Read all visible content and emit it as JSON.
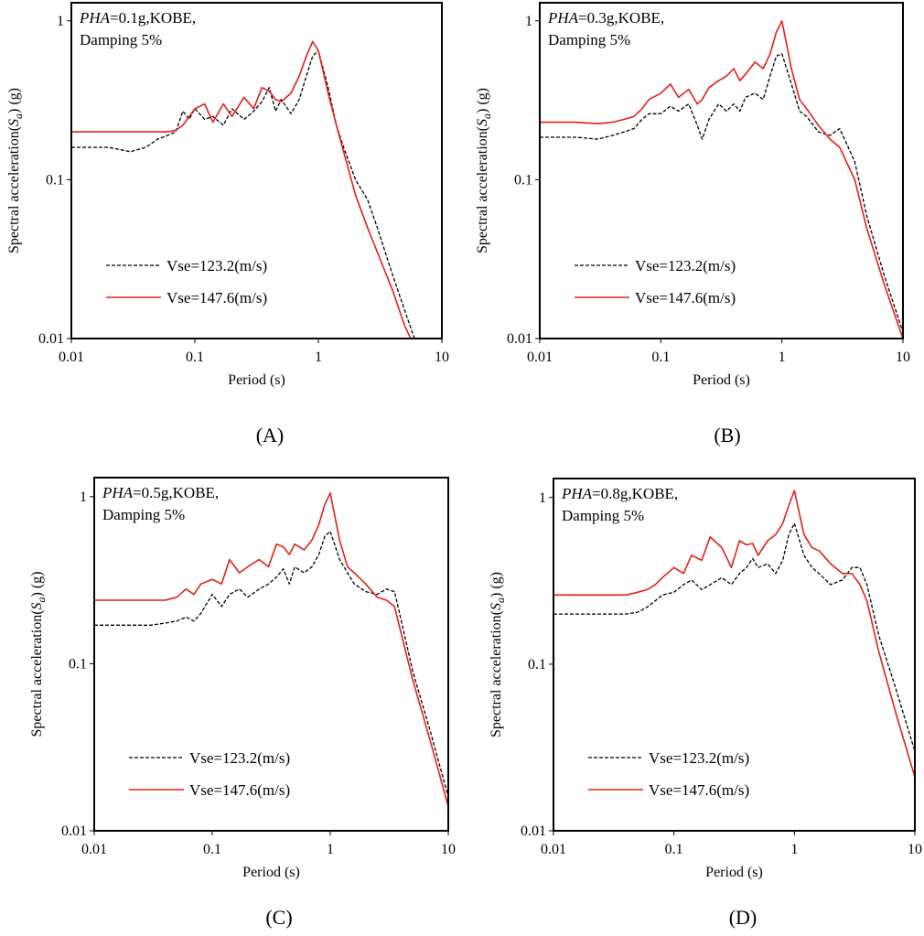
{
  "figure": {
    "panels": [
      {
        "caption": "(A)",
        "pha_label": "PHA",
        "annotation_rest": "=0.1g,KOBE,",
        "damping": "Damping 5%"
      },
      {
        "caption": "(B)",
        "pha_label": "PHA",
        "annotation_rest": "=0.3g,KOBE,",
        "damping": "Damping 5%"
      },
      {
        "caption": "(C)",
        "pha_label": "PHA",
        "annotation_rest": "=0.5g,KOBE,",
        "damping": "Damping 5%"
      },
      {
        "caption": "(D)",
        "pha_label": "PHA",
        "annotation_rest": "=0.8g,KOBE,",
        "damping": "Damping 5%"
      }
    ]
  },
  "chart_data": [
    {
      "type": "line",
      "title": "PHA=0.1g,KOBE, Damping 5%",
      "xlabel": "Period (s)",
      "ylabel_main": "Spectral  acceleration(",
      "ylabel_symbol": "S",
      "ylabel_sub": "a",
      "ylabel_end": ") (g)",
      "xscale": "log",
      "yscale": "log",
      "xlim": [
        0.01,
        10
      ],
      "ylim": [
        0.01,
        1.3
      ],
      "xticks": [
        "0.01",
        "0.1",
        "1",
        "10"
      ],
      "yticks": [
        "0.01",
        "0.1",
        "1"
      ],
      "legend_position": "lower-left",
      "series": [
        {
          "name": "Vse=123.2(m/s)",
          "color": "#000000",
          "dash": "dashed",
          "x": [
            0.01,
            0.02,
            0.03,
            0.04,
            0.05,
            0.06,
            0.07,
            0.08,
            0.09,
            0.1,
            0.12,
            0.14,
            0.17,
            0.2,
            0.25,
            0.3,
            0.35,
            0.4,
            0.45,
            0.5,
            0.6,
            0.7,
            0.8,
            0.9,
            1.0,
            1.2,
            1.4,
            1.6,
            2.0,
            2.5,
            3.0,
            4.0,
            5.0,
            6.0
          ],
          "y": [
            0.16,
            0.16,
            0.15,
            0.16,
            0.18,
            0.19,
            0.2,
            0.27,
            0.24,
            0.28,
            0.24,
            0.25,
            0.22,
            0.28,
            0.24,
            0.27,
            0.31,
            0.38,
            0.27,
            0.32,
            0.26,
            0.32,
            0.45,
            0.6,
            0.65,
            0.38,
            0.22,
            0.16,
            0.1,
            0.075,
            0.05,
            0.025,
            0.015,
            0.01
          ]
        },
        {
          "name": "Vse=147.6(m/s)",
          "color": "#e3201b",
          "dash": "solid",
          "x": [
            0.01,
            0.02,
            0.03,
            0.04,
            0.05,
            0.06,
            0.07,
            0.08,
            0.1,
            0.12,
            0.14,
            0.17,
            0.2,
            0.25,
            0.3,
            0.35,
            0.4,
            0.45,
            0.5,
            0.6,
            0.7,
            0.8,
            0.9,
            1.0,
            1.2,
            1.4,
            1.6,
            2.0,
            2.5,
            3.0,
            4.0,
            5.0,
            5.6
          ],
          "y": [
            0.2,
            0.2,
            0.2,
            0.2,
            0.2,
            0.2,
            0.205,
            0.22,
            0.28,
            0.3,
            0.23,
            0.3,
            0.25,
            0.33,
            0.28,
            0.38,
            0.36,
            0.32,
            0.31,
            0.35,
            0.45,
            0.6,
            0.74,
            0.65,
            0.35,
            0.22,
            0.15,
            0.08,
            0.05,
            0.035,
            0.02,
            0.012,
            0.01
          ]
        }
      ]
    },
    {
      "type": "line",
      "title": "PHA=0.3g,KOBE, Damping 5%",
      "xlabel": "Period (s)",
      "ylabel_main": "Spectral  acceleration(",
      "ylabel_symbol": "S",
      "ylabel_sub": "a",
      "ylabel_end": ") (g)",
      "xscale": "log",
      "yscale": "log",
      "xlim": [
        0.01,
        10
      ],
      "ylim": [
        0.01,
        1.3
      ],
      "xticks": [
        "0.01",
        "0.1",
        "1",
        "10"
      ],
      "yticks": [
        "0.01",
        "0.1",
        "1"
      ],
      "legend_position": "lower-left",
      "series": [
        {
          "name": "Vse=123.2(m/s)",
          "color": "#000000",
          "dash": "dashed",
          "x": [
            0.01,
            0.02,
            0.03,
            0.04,
            0.05,
            0.06,
            0.07,
            0.08,
            0.1,
            0.12,
            0.14,
            0.17,
            0.2,
            0.22,
            0.25,
            0.3,
            0.35,
            0.4,
            0.45,
            0.5,
            0.6,
            0.7,
            0.8,
            0.9,
            1.0,
            1.2,
            1.4,
            1.6,
            2.0,
            2.5,
            3.0,
            4.0,
            5.0,
            7.0,
            10.0
          ],
          "y": [
            0.185,
            0.185,
            0.18,
            0.19,
            0.2,
            0.21,
            0.24,
            0.26,
            0.26,
            0.29,
            0.27,
            0.3,
            0.22,
            0.18,
            0.24,
            0.3,
            0.27,
            0.3,
            0.27,
            0.33,
            0.35,
            0.32,
            0.45,
            0.6,
            0.62,
            0.4,
            0.27,
            0.25,
            0.2,
            0.19,
            0.21,
            0.13,
            0.06,
            0.025,
            0.011
          ]
        },
        {
          "name": "Vse=147.6(m/s)",
          "color": "#e3201b",
          "dash": "solid",
          "x": [
            0.01,
            0.02,
            0.03,
            0.04,
            0.05,
            0.06,
            0.07,
            0.08,
            0.1,
            0.12,
            0.14,
            0.17,
            0.2,
            0.22,
            0.25,
            0.3,
            0.35,
            0.4,
            0.45,
            0.5,
            0.6,
            0.7,
            0.8,
            0.9,
            1.0,
            1.2,
            1.4,
            1.6,
            2.0,
            2.5,
            3.0,
            4.0,
            5.0,
            7.0,
            10.0
          ],
          "y": [
            0.23,
            0.23,
            0.225,
            0.23,
            0.24,
            0.25,
            0.28,
            0.32,
            0.35,
            0.4,
            0.33,
            0.37,
            0.3,
            0.32,
            0.38,
            0.42,
            0.45,
            0.5,
            0.42,
            0.46,
            0.55,
            0.5,
            0.62,
            0.85,
            1.0,
            0.5,
            0.32,
            0.28,
            0.22,
            0.18,
            0.16,
            0.1,
            0.05,
            0.022,
            0.01
          ]
        }
      ]
    },
    {
      "type": "line",
      "title": "PHA=0.5g,KOBE, Damping 5%",
      "xlabel": "Period (s)",
      "ylabel_main": "Spectral  acceleration(",
      "ylabel_symbol": "S",
      "ylabel_sub": "a",
      "ylabel_end": ") (g)",
      "xscale": "log",
      "yscale": "log",
      "xlim": [
        0.01,
        10
      ],
      "ylim": [
        0.01,
        1.3
      ],
      "xticks": [
        "0.01",
        "0.1",
        "1",
        "10"
      ],
      "yticks": [
        "0.01",
        "0.1",
        "1"
      ],
      "legend_position": "lower-left",
      "series": [
        {
          "name": "Vse=123.2(m/s)",
          "color": "#000000",
          "dash": "dashed",
          "x": [
            0.01,
            0.02,
            0.03,
            0.04,
            0.05,
            0.06,
            0.07,
            0.08,
            0.1,
            0.12,
            0.14,
            0.17,
            0.2,
            0.25,
            0.3,
            0.35,
            0.4,
            0.45,
            0.5,
            0.6,
            0.7,
            0.8,
            0.9,
            1.0,
            1.2,
            1.4,
            1.6,
            2.0,
            2.5,
            3.0,
            3.5,
            4.0,
            5.0,
            7.0,
            10.0
          ],
          "y": [
            0.17,
            0.17,
            0.17,
            0.175,
            0.18,
            0.19,
            0.18,
            0.2,
            0.26,
            0.22,
            0.26,
            0.28,
            0.25,
            0.28,
            0.3,
            0.33,
            0.37,
            0.3,
            0.38,
            0.35,
            0.38,
            0.45,
            0.58,
            0.62,
            0.42,
            0.35,
            0.3,
            0.27,
            0.26,
            0.28,
            0.27,
            0.18,
            0.09,
            0.04,
            0.016
          ]
        },
        {
          "name": "Vse=147.6(m/s)",
          "color": "#e3201b",
          "dash": "solid",
          "x": [
            0.01,
            0.02,
            0.03,
            0.04,
            0.05,
            0.06,
            0.07,
            0.08,
            0.1,
            0.12,
            0.14,
            0.17,
            0.2,
            0.25,
            0.3,
            0.35,
            0.4,
            0.45,
            0.5,
            0.6,
            0.7,
            0.8,
            0.9,
            1.0,
            1.2,
            1.4,
            1.6,
            2.0,
            2.5,
            3.0,
            3.5,
            4.0,
            5.0,
            7.0,
            10.0
          ],
          "y": [
            0.24,
            0.24,
            0.24,
            0.24,
            0.25,
            0.28,
            0.26,
            0.3,
            0.32,
            0.3,
            0.42,
            0.35,
            0.38,
            0.42,
            0.38,
            0.52,
            0.5,
            0.45,
            0.52,
            0.48,
            0.55,
            0.68,
            0.9,
            1.05,
            0.55,
            0.38,
            0.35,
            0.3,
            0.25,
            0.24,
            0.22,
            0.15,
            0.08,
            0.035,
            0.014
          ]
        }
      ]
    },
    {
      "type": "line",
      "title": "PHA=0.8g,KOBE, Damping 5%",
      "xlabel": "Period (s)",
      "ylabel_main": "Spectral  acceleration(",
      "ylabel_symbol": "S",
      "ylabel_sub": "a",
      "ylabel_end": ") (g)",
      "xscale": "log",
      "yscale": "log",
      "xlim": [
        0.01,
        10
      ],
      "ylim": [
        0.01,
        1.3
      ],
      "xticks": [
        "0.01",
        "0.1",
        "1",
        "10"
      ],
      "yticks": [
        "0.01",
        "0.1",
        "1"
      ],
      "legend_position": "lower-left",
      "series": [
        {
          "name": "Vse=123.2(m/s)",
          "color": "#000000",
          "dash": "dashed",
          "x": [
            0.01,
            0.02,
            0.03,
            0.04,
            0.05,
            0.06,
            0.07,
            0.08,
            0.1,
            0.12,
            0.14,
            0.17,
            0.2,
            0.25,
            0.3,
            0.35,
            0.4,
            0.45,
            0.5,
            0.6,
            0.7,
            0.8,
            0.9,
            1.0,
            1.2,
            1.4,
            1.6,
            2.0,
            2.5,
            3.0,
            3.5,
            4.0,
            5.0,
            7.0,
            10.0
          ],
          "y": [
            0.2,
            0.2,
            0.2,
            0.2,
            0.205,
            0.22,
            0.24,
            0.26,
            0.27,
            0.3,
            0.32,
            0.28,
            0.3,
            0.33,
            0.3,
            0.35,
            0.38,
            0.43,
            0.38,
            0.4,
            0.35,
            0.42,
            0.6,
            0.7,
            0.45,
            0.38,
            0.35,
            0.3,
            0.32,
            0.38,
            0.38,
            0.3,
            0.15,
            0.07,
            0.03
          ]
        },
        {
          "name": "Vse=147.6(m/s)",
          "color": "#e3201b",
          "dash": "solid",
          "x": [
            0.01,
            0.02,
            0.03,
            0.04,
            0.05,
            0.06,
            0.07,
            0.08,
            0.1,
            0.12,
            0.14,
            0.17,
            0.2,
            0.25,
            0.3,
            0.35,
            0.4,
            0.45,
            0.5,
            0.6,
            0.7,
            0.8,
            0.9,
            1.0,
            1.2,
            1.4,
            1.6,
            2.0,
            2.5,
            3.0,
            3.5,
            4.0,
            5.0,
            7.0,
            10.0
          ],
          "y": [
            0.26,
            0.26,
            0.26,
            0.26,
            0.27,
            0.28,
            0.3,
            0.33,
            0.38,
            0.35,
            0.45,
            0.42,
            0.58,
            0.5,
            0.38,
            0.55,
            0.52,
            0.53,
            0.45,
            0.55,
            0.6,
            0.7,
            0.9,
            1.1,
            0.6,
            0.5,
            0.48,
            0.4,
            0.35,
            0.35,
            0.3,
            0.24,
            0.12,
            0.05,
            0.021
          ]
        }
      ]
    }
  ]
}
